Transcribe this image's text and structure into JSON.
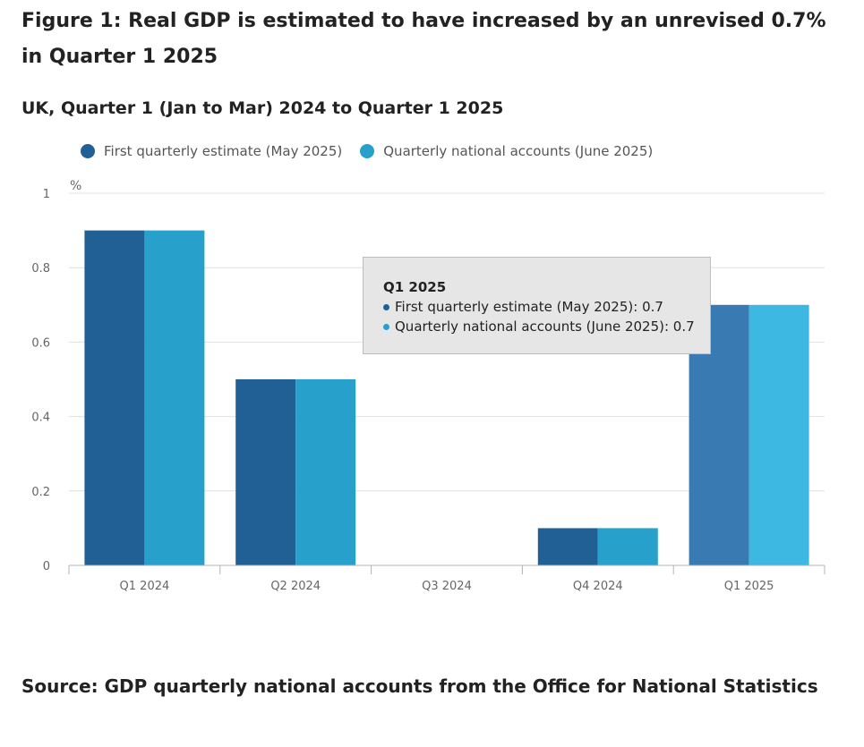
{
  "title": "Figure 1: Real GDP is estimated to have increased by an unrevised 0.7% in Quarter 1 2025",
  "subtitle": "UK, Quarter 1 (Jan to Mar) 2024 to Quarter 1 2025",
  "source": "Source: GDP quarterly national accounts from the Office for National Statistics",
  "colors": {
    "series1": "#206095",
    "series2": "#27a0cc",
    "series1_highlight": "#3a7ab2",
    "series2_highlight": "#3cb8e3",
    "grid": "#e0e0e0"
  },
  "tooltip": {
    "heading": "Q1 2025",
    "line1": "First quarterly estimate (May 2025): 0.7",
    "line2": "Quarterly national accounts (June 2025): 0.7"
  },
  "chart_data": {
    "type": "bar",
    "title": "Figure 1: Real GDP is estimated to have increased by an unrevised 0.7% in Quarter 1 2025",
    "subtitle": "UK, Quarter 1 (Jan to Mar) 2024 to Quarter 1 2025",
    "ylabel": "%",
    "xlabel": "",
    "ylim": [
      0,
      1
    ],
    "yticks": [
      "0",
      "0.2",
      "0.4",
      "0.6",
      "0.8",
      "1"
    ],
    "ytick_values": [
      0,
      0.2,
      0.4,
      0.6,
      0.8,
      1
    ],
    "grid": true,
    "legend_position": "top-left",
    "categories": [
      "Q1 2024",
      "Q2 2024",
      "Q3 2024",
      "Q4 2024",
      "Q1 2025"
    ],
    "series": [
      {
        "name": "First quarterly estimate (May 2025)",
        "values": [
          0.9,
          0.5,
          0.0,
          0.1,
          0.7
        ]
      },
      {
        "name": "Quarterly national accounts (June 2025)",
        "values": [
          0.9,
          0.5,
          0.0,
          0.1,
          0.7
        ]
      }
    ],
    "highlighted_category": "Q1 2025"
  }
}
